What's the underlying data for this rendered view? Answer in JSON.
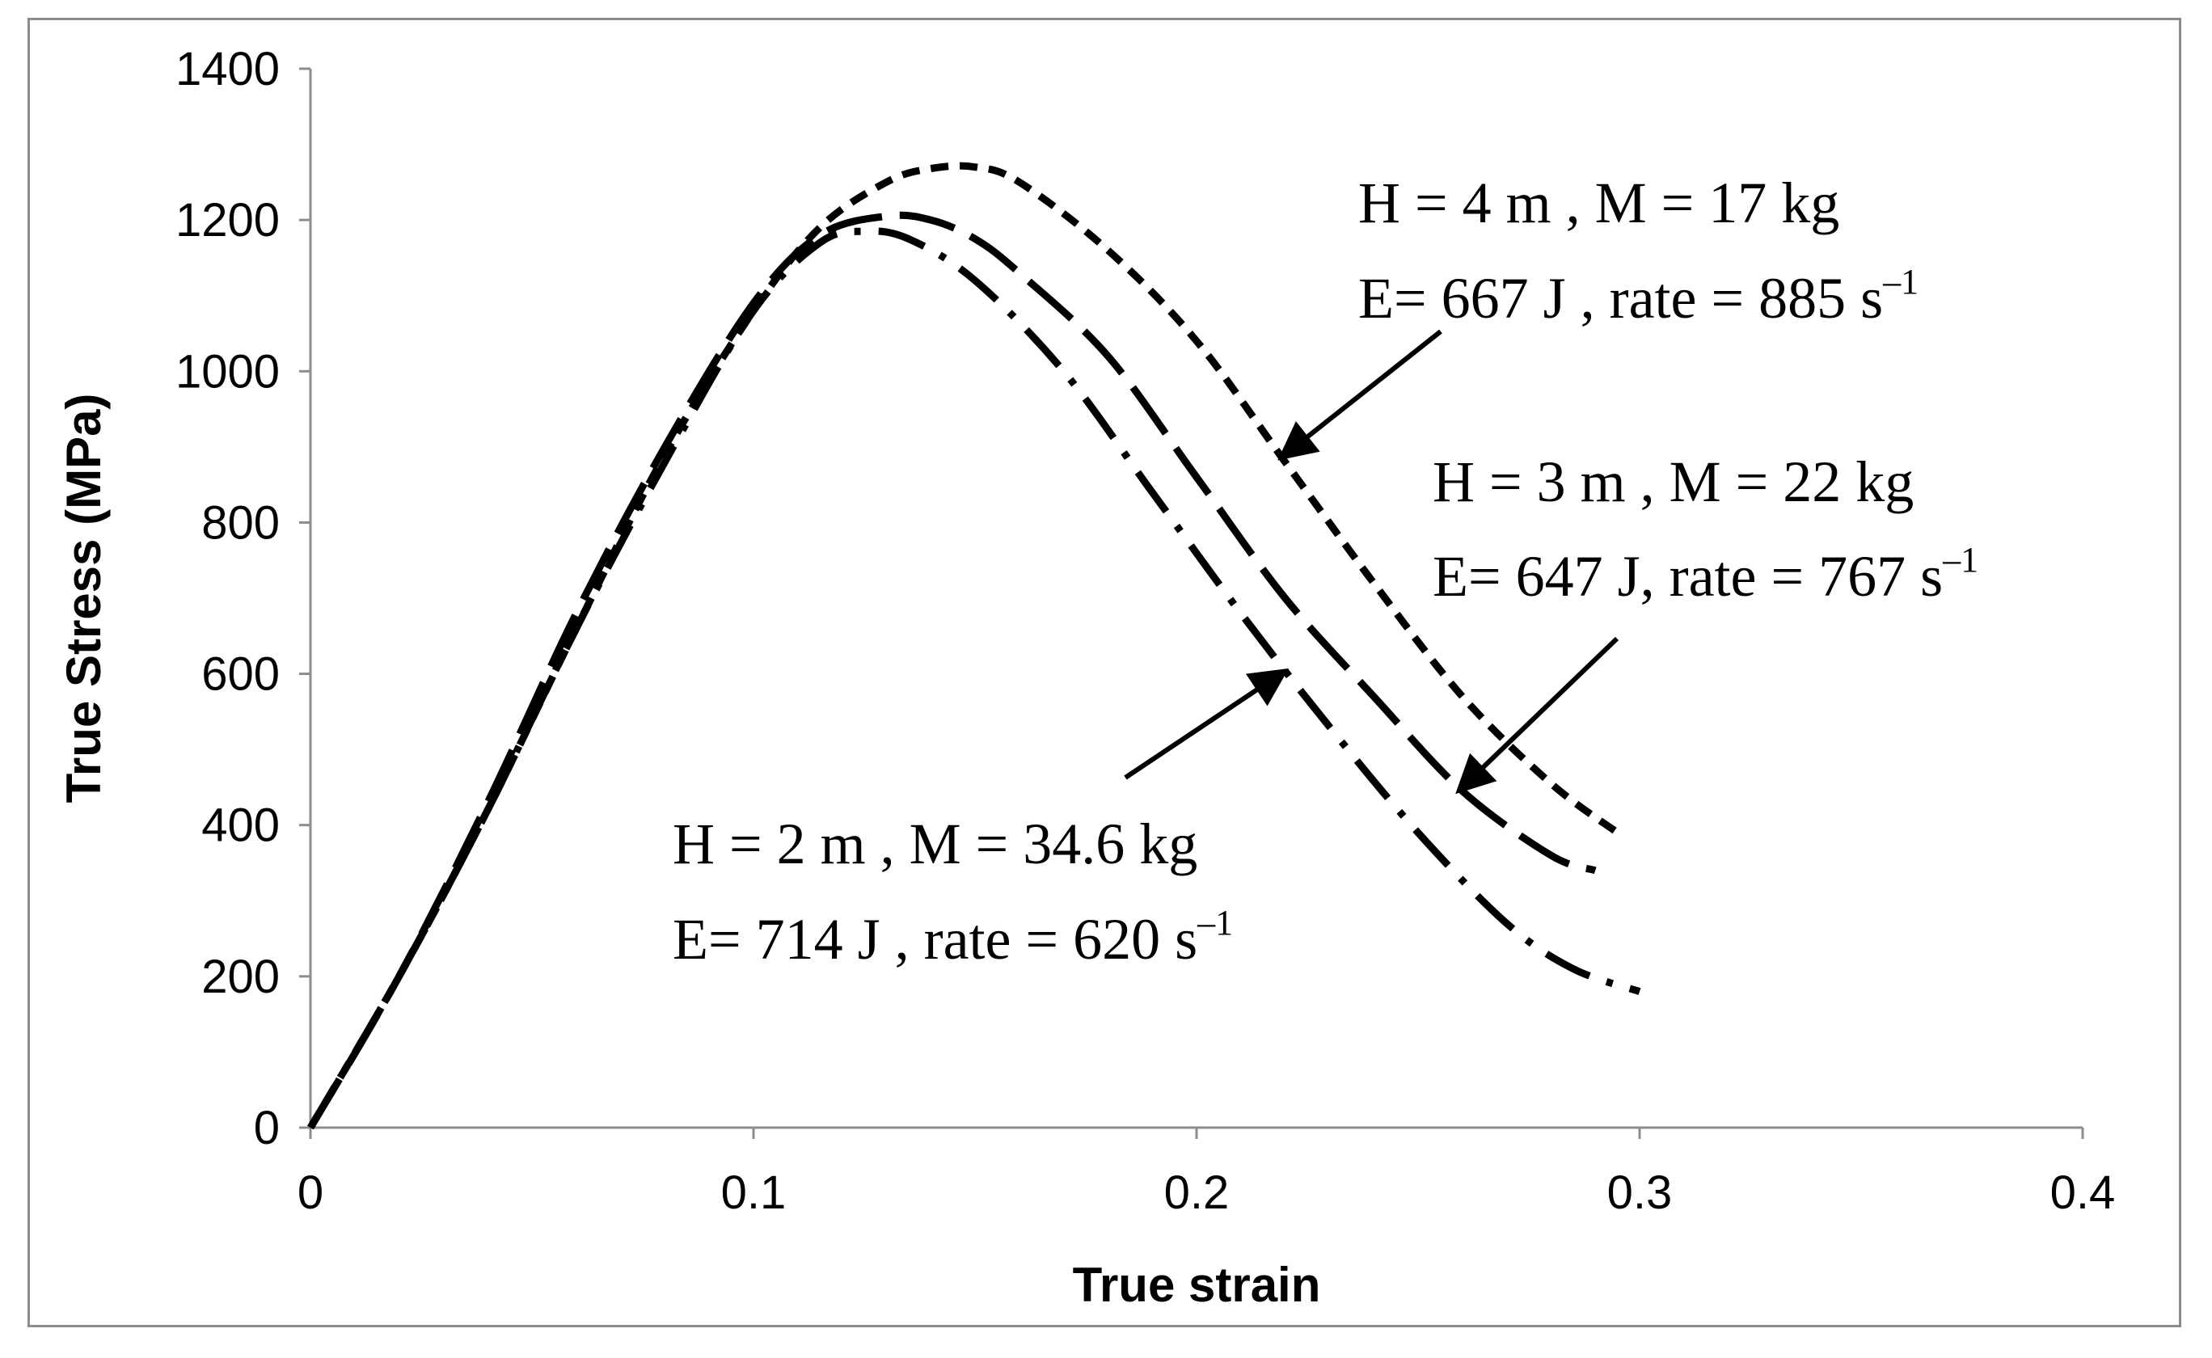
{
  "chart_data": {
    "type": "line",
    "title": "",
    "xlabel": "True strain",
    "ylabel": "True Stress (MPa)",
    "xlim": [
      0,
      0.4
    ],
    "ylim": [
      0,
      1400
    ],
    "x_ticks": [
      "0",
      "0.1",
      "0.2",
      "0.3",
      "0.4"
    ],
    "y_ticks": [
      "0",
      "200",
      "400",
      "600",
      "800",
      "1000",
      "1200",
      "1400"
    ],
    "grid": false,
    "legend": "none",
    "series": [
      {
        "line_style": "short-dash",
        "color": "#000000",
        "x": [
          0,
          0.02,
          0.04,
          0.06,
          0.08,
          0.1,
          0.115,
          0.13,
          0.14,
          0.15,
          0.16,
          0.18,
          0.2,
          0.22,
          0.24,
          0.26,
          0.28,
          0.295
        ],
        "y": [
          0,
          200,
          420,
          660,
          890,
          1080,
          1190,
          1250,
          1268,
          1270,
          1250,
          1160,
          1040,
          880,
          720,
          570,
          455,
          390
        ]
      },
      {
        "line_style": "long-dash",
        "color": "#000000",
        "x": [
          0,
          0.02,
          0.04,
          0.06,
          0.08,
          0.1,
          0.115,
          0.13,
          0.14,
          0.15,
          0.16,
          0.18,
          0.2,
          0.22,
          0.24,
          0.26,
          0.28,
          0.29
        ],
        "y": [
          0,
          200,
          430,
          680,
          900,
          1090,
          1180,
          1205,
          1200,
          1175,
          1130,
          1020,
          860,
          700,
          570,
          445,
          360,
          340
        ]
      },
      {
        "line_style": "dash-dot",
        "color": "#000000",
        "x": [
          0,
          0.02,
          0.04,
          0.06,
          0.08,
          0.1,
          0.115,
          0.125,
          0.135,
          0.15,
          0.17,
          0.19,
          0.21,
          0.23,
          0.25,
          0.27,
          0.285,
          0.3
        ],
        "y": [
          0,
          200,
          420,
          660,
          880,
          1080,
          1170,
          1185,
          1175,
          1120,
          1000,
          840,
          680,
          530,
          390,
          270,
          210,
          180
        ]
      }
    ],
    "annotations": [
      {
        "line1": "H = 4 m , M = 17 kg",
        "line2_main": "E= 667 J , rate = 885 s",
        "line2_sup": "–1",
        "arrow_to": [
          0.22,
          890
        ]
      },
      {
        "line1": "H = 3 m , M = 22 kg",
        "line2_main": "E= 647 J, rate = 767 s",
        "line2_sup": "–1",
        "arrow_to": [
          0.26,
          450
        ]
      },
      {
        "line1": "H = 2 m , M = 34.6 kg",
        "line2_main": "E= 714 J , rate = 620 s",
        "line2_sup": "–1",
        "arrow_to": [
          0.219,
          600
        ]
      }
    ]
  }
}
